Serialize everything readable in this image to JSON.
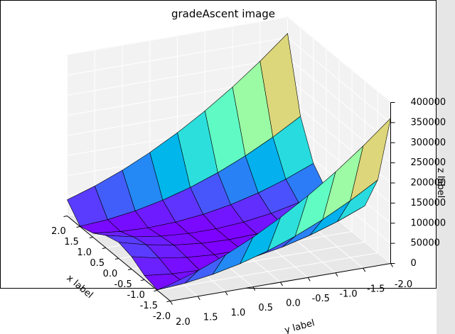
{
  "chart_data": {
    "type": "surface",
    "title": "gradeAscent image",
    "xlabel": "x label",
    "ylabel": "y label",
    "zlabel": "z label",
    "xlabel_color": "#ff0000",
    "ylabel_color": "#008000",
    "zlabel_color": "#0000ff",
    "colormap": "rainbow",
    "x": [
      -2,
      -1.5,
      -1,
      -0.5,
      0,
      0.5,
      1,
      1.5,
      2
    ],
    "y": [
      -2,
      -1.5,
      -1,
      -0.5,
      0,
      0.5,
      1,
      1.5,
      2
    ],
    "z": [
      [
        360900,
        303400,
        250900,
        203400,
        160900,
        123400,
        90900,
        63400,
        40900
      ],
      [
        181250,
        141250,
        106250,
        76250,
        51250,
        31250,
        16250,
        6250,
        1250
      ],
      [
        90400,
        62900,
        40400,
        22900,
        10400,
        2900,
        400,
        2900,
        10400
      ],
      [
        50850,
        30850,
        15850,
        5850,
        850,
        850,
        5850,
        15850,
        30850
      ],
      [
        40100,
        22600,
        10100,
        2600,
        100,
        2600,
        10100,
        22600,
        40100
      ],
      [
        50650,
        30650,
        15650,
        5650,
        650,
        650,
        5650,
        15650,
        30650
      ],
      [
        90000,
        62500,
        40000,
        22500,
        10000,
        2500,
        0,
        2500,
        10000
      ],
      [
        180650,
        140650,
        105650,
        75650,
        50650,
        30650,
        15650,
        5650,
        650
      ],
      [
        360100,
        302600,
        250100,
        202600,
        160100,
        122600,
        90100,
        62600,
        40100
      ]
    ],
    "xlim": [
      -2,
      2
    ],
    "ylim": [
      -2,
      2
    ],
    "zlim": [
      0,
      400000
    ],
    "xticks": [
      {
        "value": 2,
        "label": "2.0"
      },
      {
        "value": 1.5,
        "label": "1.5"
      },
      {
        "value": 1,
        "label": "1.0"
      },
      {
        "value": 0.5,
        "label": "0.5"
      },
      {
        "value": 0,
        "label": "0.0"
      },
      {
        "value": -0.5,
        "label": "-0.5"
      },
      {
        "value": -1,
        "label": "-1.0"
      },
      {
        "value": -1.5,
        "label": "-1.5"
      },
      {
        "value": -2,
        "label": "-2.0"
      }
    ],
    "yticks": [
      {
        "value": 2,
        "label": "2.0"
      },
      {
        "value": 1.5,
        "label": "1.5"
      },
      {
        "value": 1,
        "label": "1.0"
      },
      {
        "value": 0.5,
        "label": "0.5"
      },
      {
        "value": 0,
        "label": "0.0"
      },
      {
        "value": -0.5,
        "label": "-0.5"
      },
      {
        "value": -1,
        "label": "-1.0"
      },
      {
        "value": -1.5,
        "label": "-1.5"
      },
      {
        "value": -2,
        "label": "-2.0"
      }
    ],
    "zticks": [
      0,
      50000,
      100000,
      150000,
      200000,
      250000,
      300000,
      350000,
      400000
    ],
    "grid": true
  }
}
